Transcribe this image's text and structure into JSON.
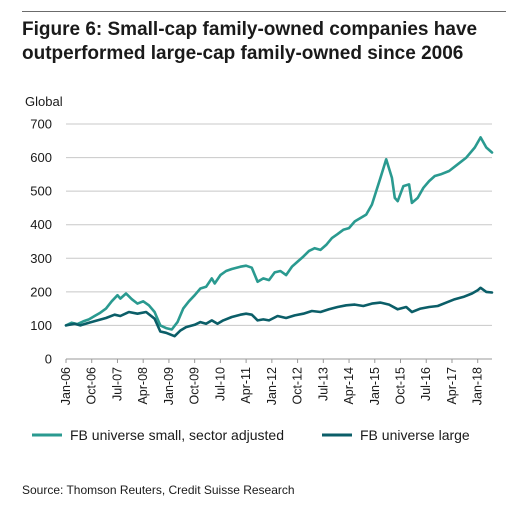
{
  "figure": {
    "title": "Figure 6: Small-cap family-owned companies have outperformed large-cap family-owned since 2006",
    "source": "Source: Thomson Reuters, Credit Suisse Research"
  },
  "chart_data": {
    "type": "line",
    "title": "Figure 6: Small-cap family-owned companies have outperformed large-cap family-owned since 2006",
    "ylabel": "Global",
    "xlabel": "",
    "ylim": [
      0,
      700
    ],
    "yticks": [
      0,
      100,
      200,
      300,
      400,
      500,
      600,
      700
    ],
    "xlim": [
      "2006-01",
      "2018-06"
    ],
    "xticks": [
      "Jan-06",
      "Oct-06",
      "Jul-07",
      "Apr-08",
      "Jan-09",
      "Oct-09",
      "Jul-10",
      "Apr-11",
      "Jan-12",
      "Oct-12",
      "Jul-13",
      "Apr-14",
      "Jan-15",
      "Oct-15",
      "Jul-16",
      "Apr-17",
      "Jan-18"
    ],
    "grid": "horizontal",
    "legend_position": "bottom",
    "series": [
      {
        "name": "FB universe small, sector adjusted",
        "color": "#2a9a90",
        "points": [
          [
            "2006-01",
            100
          ],
          [
            "2006-03",
            108
          ],
          [
            "2006-05",
            104
          ],
          [
            "2006-07",
            112
          ],
          [
            "2006-09",
            118
          ],
          [
            "2006-11",
            128
          ],
          [
            "2007-01",
            138
          ],
          [
            "2007-03",
            150
          ],
          [
            "2007-05",
            172
          ],
          [
            "2007-07",
            190
          ],
          [
            "2007-08",
            180
          ],
          [
            "2007-10",
            195
          ],
          [
            "2007-12",
            178
          ],
          [
            "2008-02",
            165
          ],
          [
            "2008-04",
            172
          ],
          [
            "2008-06",
            160
          ],
          [
            "2008-08",
            140
          ],
          [
            "2008-10",
            100
          ],
          [
            "2008-12",
            92
          ],
          [
            "2009-02",
            88
          ],
          [
            "2009-04",
            110
          ],
          [
            "2009-06",
            150
          ],
          [
            "2009-08",
            172
          ],
          [
            "2009-10",
            190
          ],
          [
            "2009-12",
            210
          ],
          [
            "2010-02",
            215
          ],
          [
            "2010-04",
            240
          ],
          [
            "2010-05",
            225
          ],
          [
            "2010-07",
            250
          ],
          [
            "2010-09",
            262
          ],
          [
            "2010-11",
            268
          ],
          [
            "2011-02",
            275
          ],
          [
            "2011-04",
            278
          ],
          [
            "2011-06",
            272
          ],
          [
            "2011-08",
            230
          ],
          [
            "2011-10",
            240
          ],
          [
            "2011-12",
            235
          ],
          [
            "2012-02",
            258
          ],
          [
            "2012-04",
            262
          ],
          [
            "2012-06",
            250
          ],
          [
            "2012-08",
            275
          ],
          [
            "2012-10",
            290
          ],
          [
            "2012-12",
            305
          ],
          [
            "2013-02",
            322
          ],
          [
            "2013-04",
            330
          ],
          [
            "2013-06",
            325
          ],
          [
            "2013-08",
            340
          ],
          [
            "2013-10",
            360
          ],
          [
            "2013-12",
            372
          ],
          [
            "2014-02",
            385
          ],
          [
            "2014-04",
            390
          ],
          [
            "2014-06",
            410
          ],
          [
            "2014-08",
            420
          ],
          [
            "2014-10",
            430
          ],
          [
            "2014-12",
            460
          ],
          [
            "2015-03",
            540
          ],
          [
            "2015-05",
            595
          ],
          [
            "2015-07",
            540
          ],
          [
            "2015-08",
            480
          ],
          [
            "2015-09",
            470
          ],
          [
            "2015-11",
            515
          ],
          [
            "2016-01",
            520
          ],
          [
            "2016-02",
            465
          ],
          [
            "2016-04",
            480
          ],
          [
            "2016-06",
            510
          ],
          [
            "2016-08",
            530
          ],
          [
            "2016-10",
            545
          ],
          [
            "2016-12",
            550
          ],
          [
            "2017-03",
            560
          ],
          [
            "2017-06",
            580
          ],
          [
            "2017-09",
            600
          ],
          [
            "2017-12",
            630
          ],
          [
            "2018-02",
            660
          ],
          [
            "2018-04",
            630
          ],
          [
            "2018-06",
            615
          ]
        ]
      },
      {
        "name": "FB universe large",
        "color": "#0b5e68",
        "points": [
          [
            "2006-01",
            100
          ],
          [
            "2006-04",
            105
          ],
          [
            "2006-06",
            100
          ],
          [
            "2006-09",
            108
          ],
          [
            "2006-12",
            115
          ],
          [
            "2007-03",
            122
          ],
          [
            "2007-06",
            132
          ],
          [
            "2007-08",
            128
          ],
          [
            "2007-11",
            140
          ],
          [
            "2008-02",
            135
          ],
          [
            "2008-05",
            140
          ],
          [
            "2008-08",
            120
          ],
          [
            "2008-10",
            82
          ],
          [
            "2008-12",
            78
          ],
          [
            "2009-03",
            68
          ],
          [
            "2009-05",
            85
          ],
          [
            "2009-07",
            95
          ],
          [
            "2009-10",
            102
          ],
          [
            "2009-12",
            110
          ],
          [
            "2010-02",
            105
          ],
          [
            "2010-04",
            115
          ],
          [
            "2010-06",
            105
          ],
          [
            "2010-08",
            115
          ],
          [
            "2010-11",
            125
          ],
          [
            "2011-02",
            132
          ],
          [
            "2011-04",
            135
          ],
          [
            "2011-06",
            132
          ],
          [
            "2011-08",
            115
          ],
          [
            "2011-10",
            118
          ],
          [
            "2011-12",
            115
          ],
          [
            "2012-03",
            128
          ],
          [
            "2012-06",
            122
          ],
          [
            "2012-09",
            130
          ],
          [
            "2012-12",
            135
          ],
          [
            "2013-03",
            143
          ],
          [
            "2013-06",
            140
          ],
          [
            "2013-09",
            148
          ],
          [
            "2013-12",
            155
          ],
          [
            "2014-03",
            160
          ],
          [
            "2014-06",
            162
          ],
          [
            "2014-09",
            158
          ],
          [
            "2014-12",
            165
          ],
          [
            "2015-03",
            168
          ],
          [
            "2015-06",
            162
          ],
          [
            "2015-09",
            148
          ],
          [
            "2015-12",
            155
          ],
          [
            "2016-02",
            140
          ],
          [
            "2016-05",
            150
          ],
          [
            "2016-08",
            155
          ],
          [
            "2016-11",
            158
          ],
          [
            "2017-02",
            168
          ],
          [
            "2017-05",
            178
          ],
          [
            "2017-08",
            185
          ],
          [
            "2017-11",
            195
          ],
          [
            "2018-01",
            205
          ],
          [
            "2018-02",
            212
          ],
          [
            "2018-04",
            200
          ],
          [
            "2018-06",
            198
          ]
        ]
      }
    ]
  }
}
